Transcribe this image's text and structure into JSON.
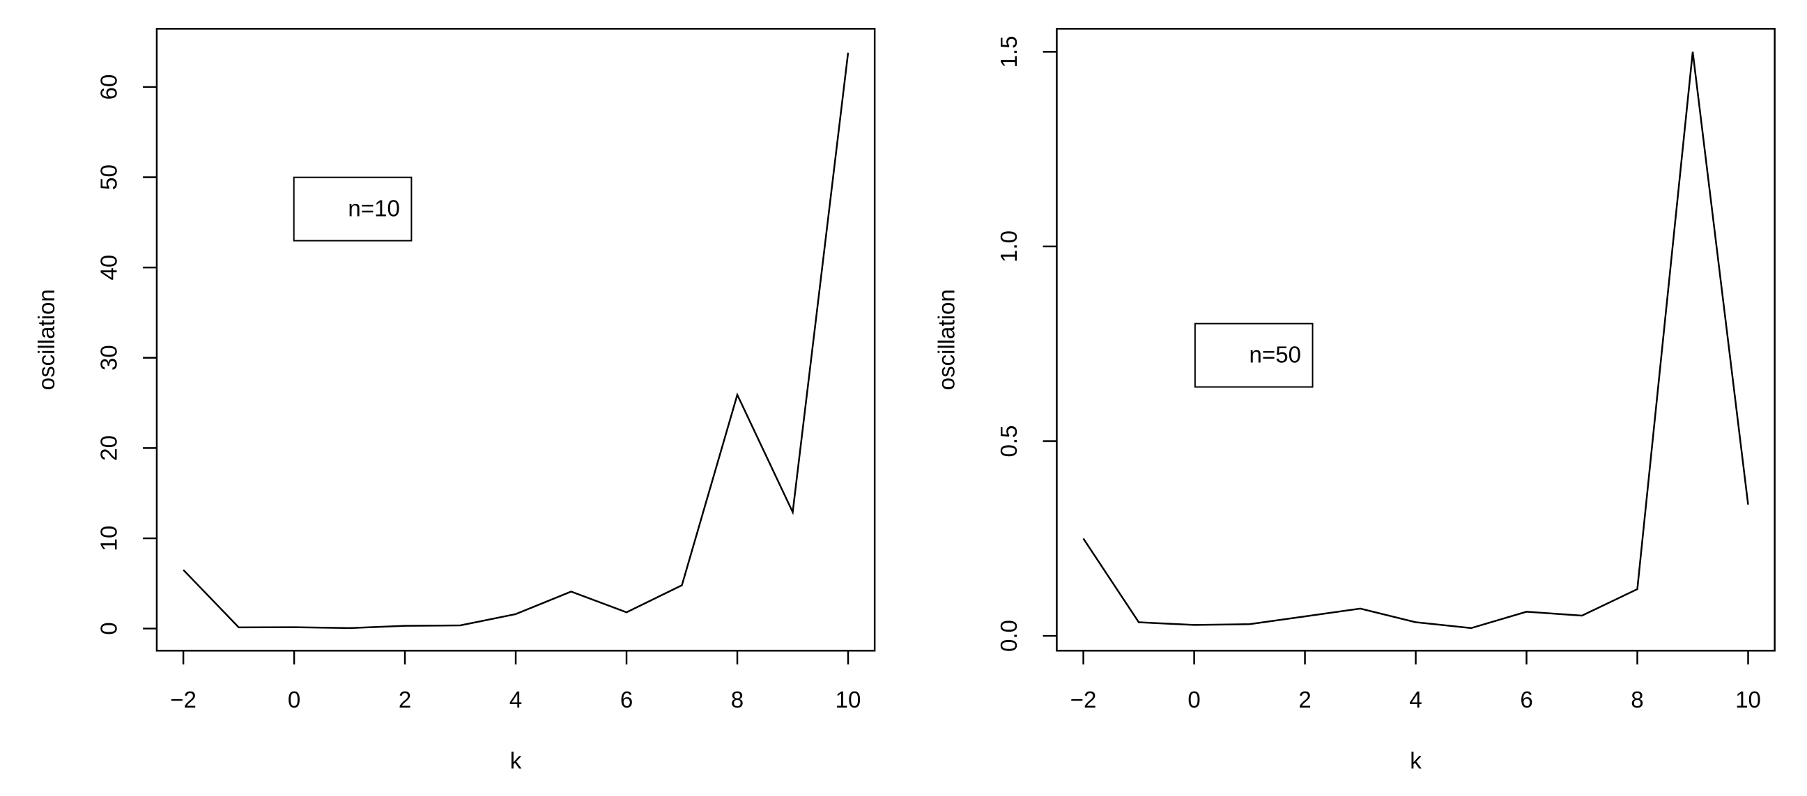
{
  "chart_data": [
    {
      "type": "line",
      "x_label": "k",
      "y_label": "oscillation",
      "x": [
        -2,
        -1,
        0,
        1,
        2,
        3,
        4,
        5,
        6,
        7,
        8,
        9,
        10
      ],
      "series": [
        {
          "name": "n=10",
          "color": "#000000",
          "values": [
            6.5,
            0.13,
            0.15,
            0.05,
            0.3,
            0.35,
            1.6,
            4.1,
            1.8,
            4.8,
            25.9,
            12.9,
            63.8
          ]
        }
      ],
      "xlim": [
        -2.48,
        10.48
      ],
      "ylim": [
        -2.45,
        66.45
      ],
      "xticks": [
        {
          "value": -2,
          "label": "−2"
        },
        0,
        2,
        4,
        6,
        8,
        10
      ],
      "yticks": [
        0,
        10,
        20,
        30,
        40,
        50,
        60
      ]
    },
    {
      "type": "line",
      "x_label": "k",
      "y_label": "oscillation",
      "x": [
        -2,
        -1,
        0,
        1,
        2,
        3,
        4,
        5,
        6,
        7,
        8,
        9,
        10
      ],
      "series": [
        {
          "name": "n=50",
          "color": "#000000",
          "values": [
            0.25,
            0.035,
            0.028,
            0.03,
            0.05,
            0.07,
            0.035,
            0.02,
            0.062,
            0.052,
            0.12,
            1.5,
            0.337
          ]
        }
      ],
      "xlim": [
        -2.48,
        10.48
      ],
      "ylim": [
        -0.038,
        1.559
      ],
      "xticks": [
        {
          "value": -2,
          "label": "−2"
        },
        0,
        2,
        4,
        6,
        8,
        10
      ],
      "yticks": [
        {
          "value": 0,
          "label": "0.0"
        },
        0.5,
        {
          "value": 1,
          "label": "1.0"
        },
        1.5
      ]
    }
  ]
}
